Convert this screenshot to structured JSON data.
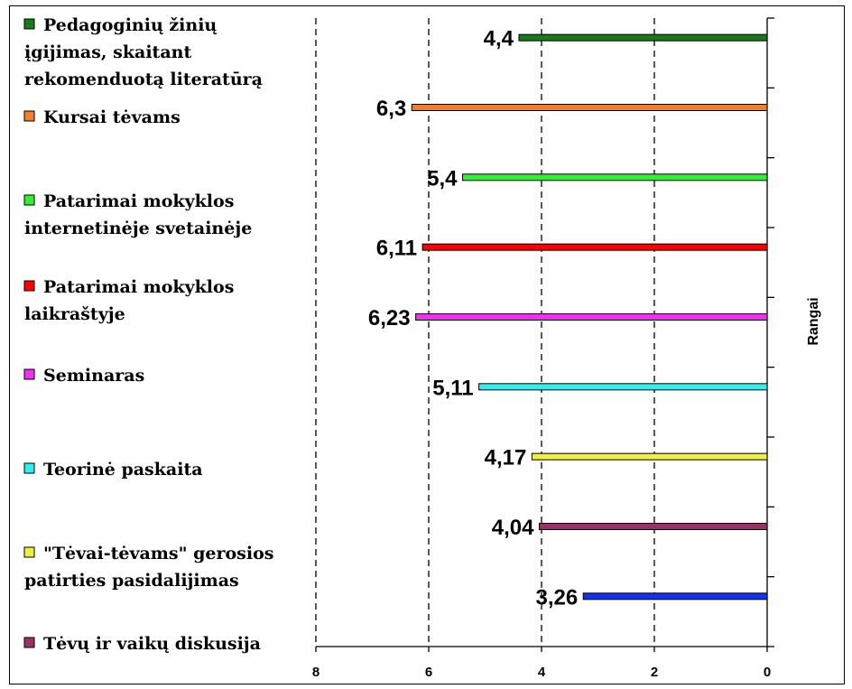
{
  "chart_data": {
    "type": "bar",
    "orientation": "horizontal",
    "x_reversed": true,
    "xlim": [
      0,
      8
    ],
    "xticks": [
      "8",
      "6",
      "4",
      "2",
      "0"
    ],
    "xtick_values": [
      8,
      6,
      4,
      2,
      0
    ],
    "ylabel": "Rangai",
    "grid": "vertical dashed",
    "legend_position": "left",
    "series": [
      {
        "name": "Pedagoginių žinių įgijimas, skaitant rekomenduotą literatūrą",
        "legend_lines": [
          "Pedagoginių žinių",
          "įgijimas, skaitant",
          "rekomenduotą literatūrą"
        ],
        "value": 4.4,
        "label": "4,4",
        "color": "#1a7a1a"
      },
      {
        "name": "Kursai tėvams",
        "legend_lines": [
          "Kursai tėvams"
        ],
        "value": 6.3,
        "label": "6,3",
        "color": "#ee7f2d"
      },
      {
        "name": "Patarimai mokyklos internetinėje svetainėje",
        "legend_lines": [
          "Patarimai mokyklos",
          "internetinėje svetainėje"
        ],
        "value": 5.4,
        "label": "5,4",
        "color": "#33ee33"
      },
      {
        "name": "Patarimai mokyklos laikraštyje",
        "legend_lines": [
          "Patarimai mokyklos",
          "laikraštyje"
        ],
        "value": 6.11,
        "label": "6,11",
        "color": "#ff0000"
      },
      {
        "name": "Seminaras",
        "legend_lines": [
          "Seminaras"
        ],
        "value": 6.23,
        "label": "6,23",
        "color": "#ee33ee"
      },
      {
        "name": "Teorinė paskaita",
        "legend_lines": [
          "Teorinė paskaita"
        ],
        "value": 5.11,
        "label": "5,11",
        "color": "#33eeee"
      },
      {
        "name": "\"Tėvai-tėvams\" gerosios patirties pasidalijimas",
        "legend_lines": [
          "\"Tėvai-tėvams\" gerosios",
          "patirties pasidalijimas"
        ],
        "value": 4.17,
        "label": "4,17",
        "color": "#eeee44"
      },
      {
        "name": "Tėvų ir vaikų diskusija",
        "legend_lines": [
          "Tėvų ir vaikų diskusija"
        ],
        "value": 4.04,
        "label": "4,04",
        "color": "#993366"
      },
      {
        "name": "",
        "legend_lines": [],
        "value": 3.26,
        "label": "3,26",
        "color": "#1133ee"
      }
    ]
  }
}
